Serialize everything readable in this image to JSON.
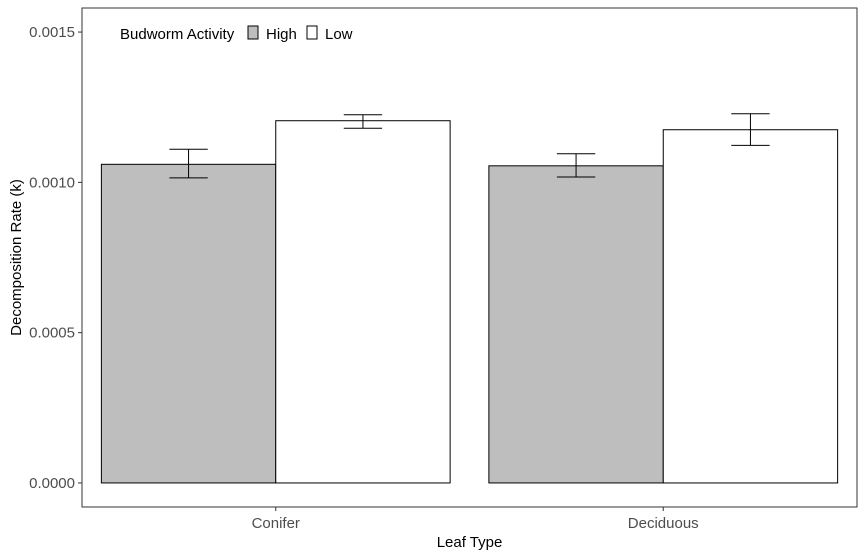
{
  "chart_data": {
    "type": "bar",
    "categories": [
      "Conifer",
      "Deciduous"
    ],
    "series": [
      {
        "name": "High",
        "color": "#bebebe",
        "values": [
          0.00106,
          0.001055
        ],
        "error_low": [
          0.001015,
          0.001018
        ],
        "error_high": [
          0.00111,
          0.001095
        ]
      },
      {
        "name": "Low",
        "color": "#ffffff",
        "values": [
          0.001205,
          0.001175
        ],
        "error_low": [
          0.00118,
          0.001123
        ],
        "error_high": [
          0.001225,
          0.001228
        ]
      }
    ],
    "xlabel": "Leaf Type",
    "ylabel": "Decomposition Rate (k)",
    "ylim": [
      -8e-05,
      0.00158
    ],
    "yticks": [
      0.0,
      0.0005,
      0.001,
      0.0015
    ],
    "ytick_labels": [
      "0.0000",
      "0.0005",
      "0.0010",
      "0.0015"
    ],
    "legend": {
      "title": "Budworm Activity",
      "position": "top-left",
      "direction": "horizontal"
    },
    "grid": false
  }
}
